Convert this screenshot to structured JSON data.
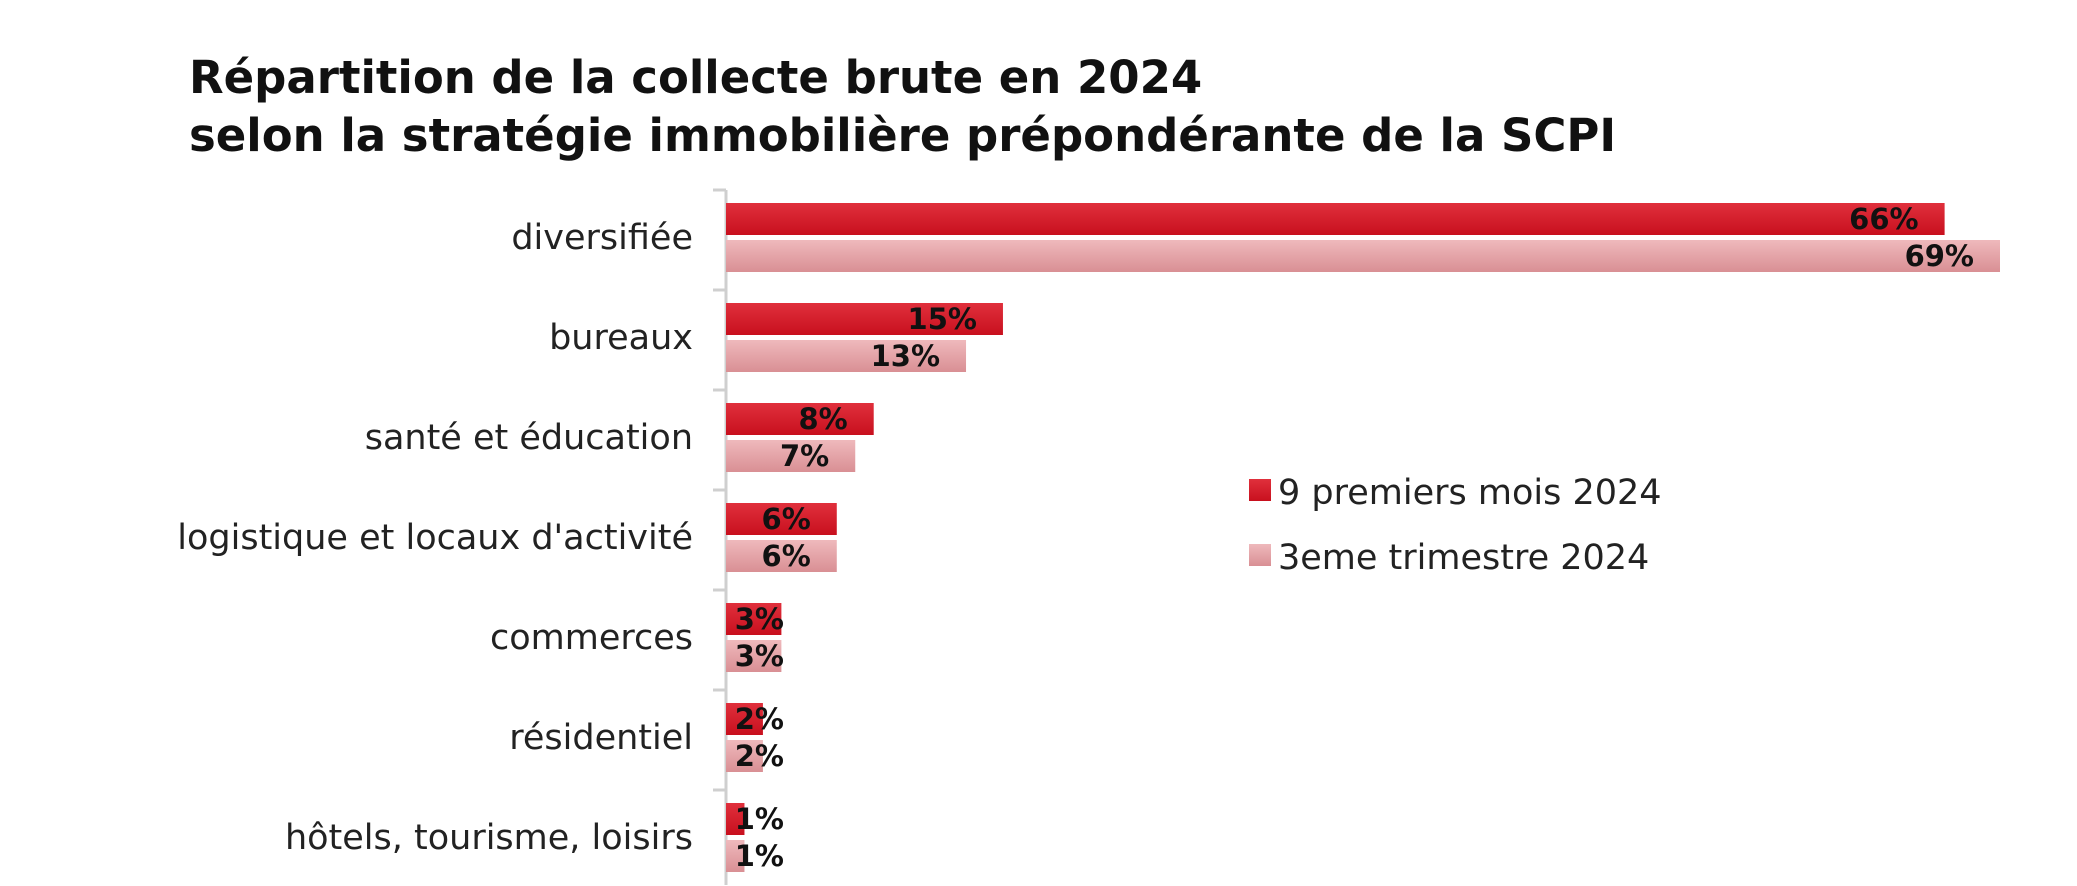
{
  "chart_data": {
    "type": "bar",
    "orientation": "horizontal",
    "title": "Répartition de la collecte brute en 2024",
    "subtitle": "selon la stratégie immobilière prépondérante de la SCPI",
    "categories": [
      "diversifiée",
      "bureaux",
      "santé et éducation",
      "logistique et locaux d'activité",
      "commerces",
      "résidentiel",
      "hôtels, tourisme, loisirs"
    ],
    "series": [
      {
        "name": "9 premiers mois 2024",
        "values": [
          66,
          15,
          8,
          6,
          3,
          2,
          1
        ],
        "labels": [
          "66%",
          "15%",
          "8%",
          "6%",
          "3%",
          "2%",
          "1%"
        ],
        "color": "#c8101e",
        "color_light": "#e0303c"
      },
      {
        "name": "3eme trimestre 2024",
        "values": [
          69,
          13,
          7,
          6,
          3,
          2,
          1
        ],
        "labels": [
          "69%",
          "13%",
          "7%",
          "6%",
          "3%",
          "2%",
          "1%"
        ],
        "color": "#d98f94",
        "color_light": "#efb9bc"
      }
    ],
    "xlim": [
      0,
      69
    ],
    "grid": false,
    "legend": "center-right"
  }
}
